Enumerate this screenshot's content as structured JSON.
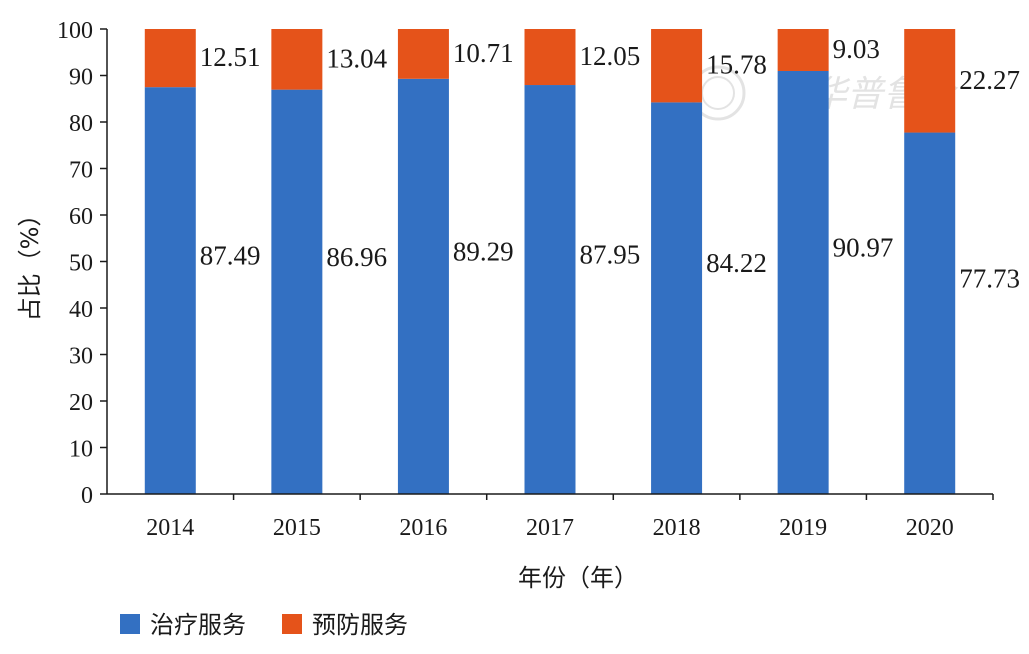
{
  "chart_data": {
    "type": "bar",
    "stacked": true,
    "categories": [
      "2014",
      "2015",
      "2016",
      "2017",
      "2018",
      "2019",
      "2020"
    ],
    "series": [
      {
        "name": "治疗服务",
        "color": "#3370c2",
        "values": [
          87.49,
          86.96,
          89.29,
          87.95,
          84.22,
          90.97,
          77.73
        ],
        "labels": [
          "87.49",
          "86.96",
          "89.29",
          "87.95",
          "84.22",
          "90.97",
          "77.73"
        ]
      },
      {
        "name": "预防服务",
        "color": "#e5531a",
        "values": [
          12.51,
          13.04,
          10.71,
          12.05,
          15.78,
          9.03,
          22.27
        ],
        "labels": [
          "12.51",
          "13.04",
          "10.71",
          "12.05",
          "15.78",
          "9.03",
          "22.27"
        ]
      }
    ],
    "ylim": [
      0,
      100
    ],
    "yticks": [
      "0",
      "10",
      "20",
      "30",
      "40",
      "50",
      "60",
      "70",
      "80",
      "90",
      "100"
    ],
    "xlabel": "年份（年）",
    "ylabel": "占比（%）",
    "legend_position": "bottom-left",
    "grid": false
  },
  "watermark": "中华普鲁会"
}
